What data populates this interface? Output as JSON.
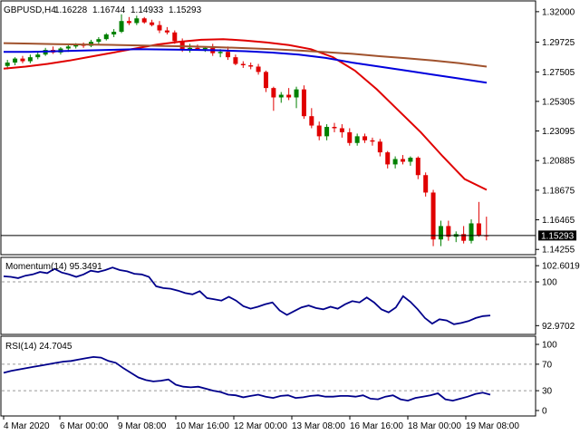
{
  "header": {
    "symbol_tf": "GBPUSD,H4",
    "ohlc": [
      "1.16228",
      "1.16744",
      "1.14933",
      "1.15293"
    ]
  },
  "colors": {
    "bull": "#008000",
    "bear": "#e00000",
    "ma_fast": "#e00000",
    "ma_mid": "#0000dd",
    "ma_slow": "#a0522d",
    "osc": "#00008b",
    "price_tag_bg": "#000000"
  },
  "chart_data": [
    {
      "type": "candlestick",
      "title": "GBPUSD,H4",
      "ylim": [
        1.14,
        1.326
      ],
      "y_ticks": [
        "1.32000",
        "1.29725",
        "1.27505",
        "1.25305",
        "1.23095",
        "1.20885",
        "1.18675",
        "1.16465",
        "1.14255"
      ],
      "current_price": "1.15293",
      "candles": [
        [
          1.2795,
          1.284,
          1.277,
          1.282
        ],
        [
          1.282,
          1.286,
          1.28,
          1.285
        ],
        [
          1.285,
          1.287,
          1.2815,
          1.283
        ],
        [
          1.283,
          1.288,
          1.2815,
          1.286
        ],
        [
          1.286,
          1.29,
          1.2845,
          1.288
        ],
        [
          1.288,
          1.293,
          1.287,
          1.2915
        ],
        [
          1.2915,
          1.294,
          1.2885,
          1.2895
        ],
        [
          1.2895,
          1.2935,
          1.288,
          1.2925
        ],
        [
          1.2925,
          1.295,
          1.29,
          1.294
        ],
        [
          1.294,
          1.2965,
          1.2925,
          1.2955
        ],
        [
          1.2955,
          1.297,
          1.293,
          1.2945
        ],
        [
          1.2945,
          1.299,
          1.2935,
          1.2975
        ],
        [
          1.2975,
          1.301,
          1.296,
          1.2995
        ],
        [
          1.2995,
          1.304,
          1.2985,
          1.303
        ],
        [
          1.303,
          1.307,
          1.301,
          1.305
        ],
        [
          1.305,
          1.318,
          1.304,
          1.313
        ],
        [
          1.313,
          1.316,
          1.31,
          1.3115
        ],
        [
          1.3115,
          1.317,
          1.31,
          1.315
        ],
        [
          1.315,
          1.316,
          1.311,
          1.312
        ],
        [
          1.312,
          1.314,
          1.309,
          1.31
        ],
        [
          1.31,
          1.313,
          1.304,
          1.306
        ],
        [
          1.306,
          1.3085,
          1.303,
          1.3045
        ],
        [
          1.3045,
          1.306,
          1.296,
          1.298
        ],
        [
          1.298,
          1.3,
          1.29,
          1.292
        ],
        [
          1.292,
          1.296,
          1.2895,
          1.293
        ],
        [
          1.293,
          1.2955,
          1.291,
          1.292
        ],
        [
          1.292,
          1.294,
          1.29,
          1.293
        ],
        [
          1.293,
          1.296,
          1.287,
          1.289
        ],
        [
          1.289,
          1.292,
          1.286,
          1.29
        ],
        [
          1.29,
          1.294,
          1.284,
          1.286
        ],
        [
          1.286,
          1.288,
          1.28,
          1.281
        ],
        [
          1.281,
          1.283,
          1.278,
          1.28
        ],
        [
          1.28,
          1.282,
          1.277,
          1.279
        ],
        [
          1.279,
          1.281,
          1.273,
          1.275
        ],
        [
          1.275,
          1.276,
          1.26,
          1.263
        ],
        [
          1.263,
          1.264,
          1.246,
          1.256
        ],
        [
          1.256,
          1.26,
          1.252,
          1.258
        ],
        [
          1.258,
          1.263,
          1.254,
          1.256
        ],
        [
          1.256,
          1.264,
          1.248,
          1.262
        ],
        [
          1.262,
          1.265,
          1.24,
          1.242
        ],
        [
          1.242,
          1.248,
          1.233,
          1.235
        ],
        [
          1.235,
          1.238,
          1.224,
          1.227
        ],
        [
          1.227,
          1.236,
          1.224,
          1.234
        ],
        [
          1.234,
          1.237,
          1.23,
          1.233
        ],
        [
          1.233,
          1.236,
          1.226,
          1.23
        ],
        [
          1.23,
          1.233,
          1.22,
          1.222
        ],
        [
          1.222,
          1.229,
          1.22,
          1.227
        ],
        [
          1.227,
          1.229,
          1.222,
          1.224
        ],
        [
          1.224,
          1.226,
          1.22,
          1.223
        ],
        [
          1.223,
          1.225,
          1.212,
          1.215
        ],
        [
          1.215,
          1.216,
          1.203,
          1.206
        ],
        [
          1.206,
          1.212,
          1.203,
          1.21
        ],
        [
          1.21,
          1.213,
          1.206,
          1.208
        ],
        [
          1.208,
          1.212,
          1.205,
          1.211
        ],
        [
          1.211,
          1.212,
          1.195,
          1.198
        ],
        [
          1.198,
          1.2,
          1.182,
          1.185
        ],
        [
          1.185,
          1.187,
          1.145,
          1.15
        ],
        [
          1.15,
          1.164,
          1.145,
          1.16
        ],
        [
          1.16,
          1.164,
          1.149,
          1.152
        ],
        [
          1.152,
          1.156,
          1.148,
          1.154
        ],
        [
          1.154,
          1.16,
          1.147,
          1.149
        ],
        [
          1.149,
          1.165,
          1.147,
          1.162
        ],
        [
          1.162,
          1.178,
          1.152,
          1.153
        ],
        [
          1.153,
          1.167,
          1.1493,
          1.1529
        ]
      ],
      "series": [
        {
          "values": [
            1.2775,
            1.279,
            1.281,
            1.2835,
            1.2865,
            1.2895,
            1.2925,
            1.2955,
            1.2975,
            1.299,
            1.2995,
            1.2985,
            1.297,
            1.295,
            1.292,
            1.286,
            1.276,
            1.262,
            1.246,
            1.23,
            1.212,
            1.195,
            1.187
          ]
        },
        {
          "values": [
            1.29,
            1.29,
            1.2905,
            1.291,
            1.2915,
            1.292,
            1.2918,
            1.2915,
            1.2912,
            1.2905,
            1.2895,
            1.288,
            1.2855,
            1.282,
            1.279,
            1.276,
            1.273,
            1.27,
            1.267
          ]
        },
        {
          "values": [
            1.2965,
            1.2962,
            1.2958,
            1.2955,
            1.2952,
            1.2948,
            1.2944,
            1.294,
            1.2935,
            1.2928,
            1.292,
            1.291,
            1.2898,
            1.2885,
            1.2868,
            1.2852,
            1.2835,
            1.2815,
            1.279
          ]
        }
      ]
    },
    {
      "type": "line",
      "title": "Momentum(14) 95.3491",
      "ylim": [
        92.0,
        103.5
      ],
      "y_ticks": [
        "102.6019",
        "100",
        "92.9702"
      ],
      "reference_lines": [
        100
      ],
      "values": [
        100.9,
        100.8,
        100.6,
        101.0,
        101.2,
        101.6,
        101.4,
        102.1,
        101.5,
        101.2,
        100.8,
        101.2,
        101.8,
        101.6,
        101.9,
        102.3,
        101.9,
        101.7,
        101.3,
        101.2,
        100.8,
        99.3,
        99.0,
        98.9,
        98.6,
        98.2,
        98.0,
        98.5,
        97.4,
        97.2,
        97.0,
        97.6,
        97.0,
        96.1,
        95.7,
        96.0,
        96.4,
        96.7,
        95.4,
        94.7,
        95.3,
        95.9,
        96.2,
        95.8,
        95.6,
        96.0,
        95.7,
        96.4,
        96.9,
        96.7,
        97.5,
        96.7,
        95.6,
        95.1,
        95.9,
        97.7,
        96.8,
        95.6,
        94.2,
        93.3,
        94.0,
        93.8,
        93.2,
        93.4,
        93.7,
        94.2,
        94.5,
        94.6
      ]
    },
    {
      "type": "line",
      "title": "RSI(14) 24.7045",
      "ylim": [
        0,
        100
      ],
      "y_ticks": [
        "100",
        "70",
        "30",
        "0"
      ],
      "reference_lines": [
        70,
        30
      ],
      "values": [
        57,
        60,
        62,
        64,
        66,
        68,
        70,
        72,
        74,
        75,
        77,
        79,
        81,
        80,
        75,
        72,
        64,
        57,
        50,
        46,
        44,
        45,
        47,
        39,
        36,
        35,
        36,
        33,
        30,
        28,
        24,
        23,
        20,
        22,
        24,
        21,
        19,
        22,
        23,
        19,
        20,
        22,
        23,
        21,
        21,
        22,
        22,
        21,
        23,
        18,
        17,
        21,
        23,
        17,
        15,
        19,
        21,
        23,
        26,
        17,
        15,
        18,
        21,
        25,
        27,
        24
      ]
    }
  ],
  "x_axis": {
    "labels": [
      "4 Mar 2020",
      "6 Mar 00:00",
      "9 Mar 08:00",
      "10 Mar 16:00",
      "12 Mar 00:00",
      "13 Mar 08:00",
      "16 Mar 16:00",
      "18 Mar 00:00",
      "19 Mar 08:00"
    ]
  }
}
